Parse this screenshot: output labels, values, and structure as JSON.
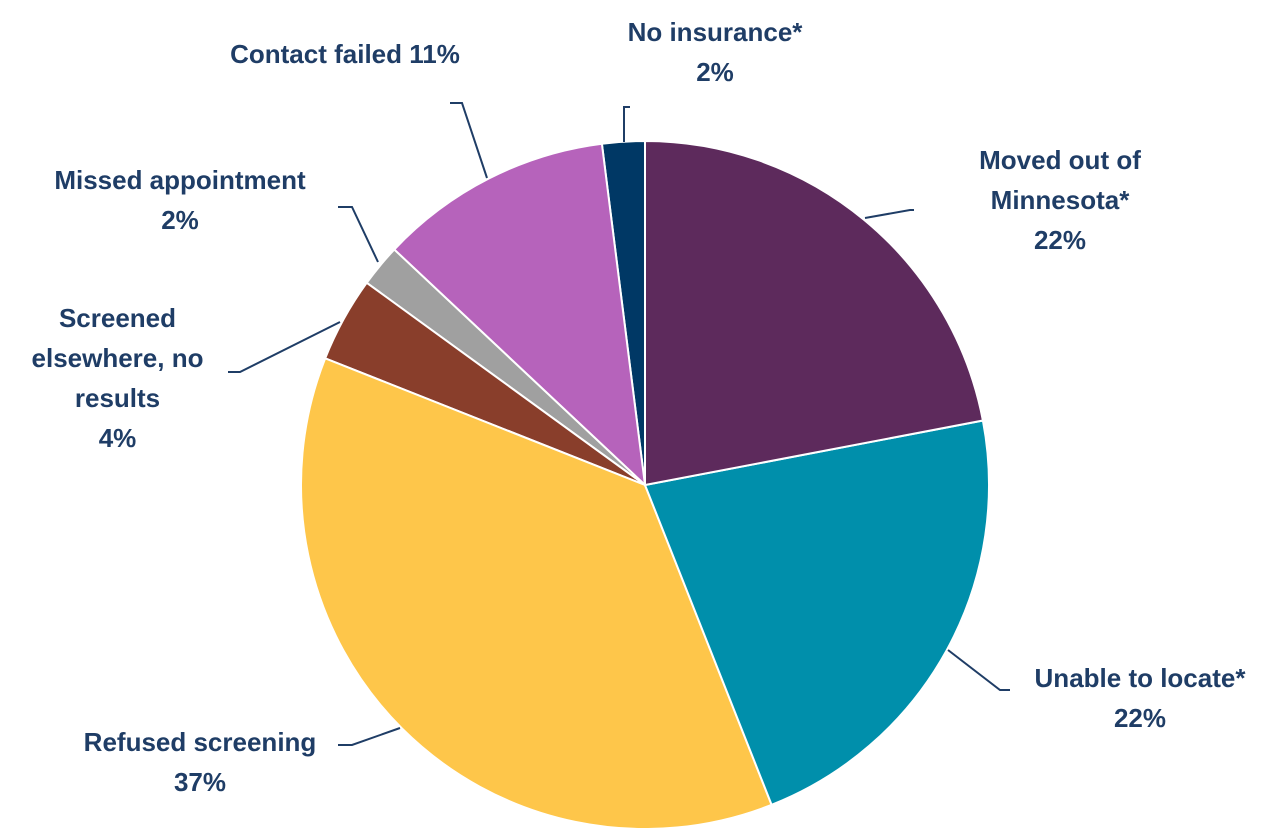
{
  "chart_data": {
    "type": "pie",
    "categories": [
      "Moved out of Minnesota*",
      "Unable to locate*",
      "Refused screening",
      "Screened elsewhere, no results",
      "Missed appointment",
      "Contact failed",
      "No insurance*"
    ],
    "values": [
      22,
      22,
      37,
      4,
      2,
      11,
      2
    ],
    "value_labels": [
      "22%",
      "22%",
      "37%",
      "4%",
      "2%",
      "11%",
      "2%"
    ],
    "colors": [
      "#5d2a5c",
      "#008fab",
      "#fec64a",
      "#893e2b",
      "#a0a0a0",
      "#b663bb",
      "#003865"
    ]
  }
}
